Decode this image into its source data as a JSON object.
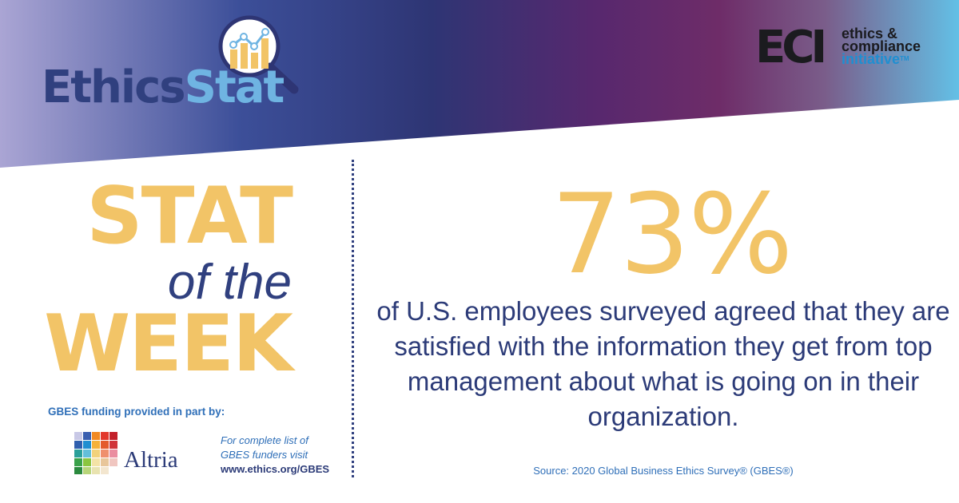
{
  "header": {
    "logo_part1": "Ethics",
    "logo_part2": "Stat",
    "eci_letters": "ECI",
    "eci_line1": "ethics &",
    "eci_line2": "compliance",
    "eci_line3": "initiative",
    "eci_tm": "TM"
  },
  "title": {
    "line1": "STAT",
    "line2": "of the",
    "line3": "WEEK"
  },
  "stat": {
    "value": "73%",
    "description": "of U.S. employees surveyed agreed that they are satisfied with the information they get from top management about what is going on in their organization.",
    "source": "Source: 2020 Global Business Ethics Survey® (GBES®)"
  },
  "funding": {
    "label": "GBES funding provided in part by:",
    "sponsor": "Altria",
    "note_line1": "For complete list of",
    "note_line2": "GBES funders visit",
    "url": "www.ethics.org/GBES"
  },
  "colors": {
    "accent_gold": "#f2c467",
    "navy": "#2c3b78",
    "link_blue": "#2f6fb8",
    "gradient": [
      "#a9a3d2",
      "#2e3f86",
      "#5b2a6e",
      "#6e2a66",
      "#6fb7df"
    ]
  },
  "icons": {
    "magnifier": "magnifier-chart-icon",
    "altria": "altria-mosaic-icon"
  }
}
